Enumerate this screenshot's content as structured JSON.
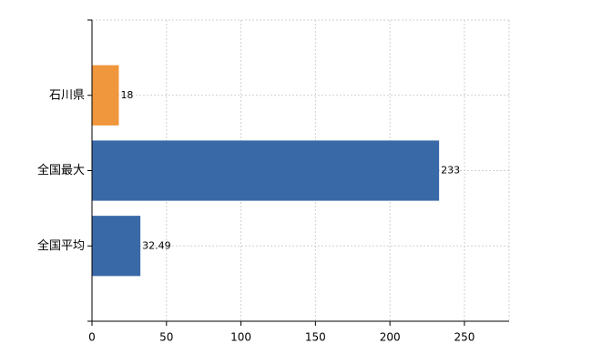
{
  "chart_data": {
    "type": "bar",
    "orientation": "horizontal",
    "categories": [
      "石川県",
      "全国最大",
      "全国平均"
    ],
    "values": [
      18,
      233,
      32.49
    ],
    "colors": [
      "#f0963c",
      "#3a69a8",
      "#3a69a8"
    ],
    "xlim": [
      0,
      280
    ],
    "xticks": [
      0,
      50,
      100,
      150,
      200,
      250
    ],
    "grid": true
  }
}
